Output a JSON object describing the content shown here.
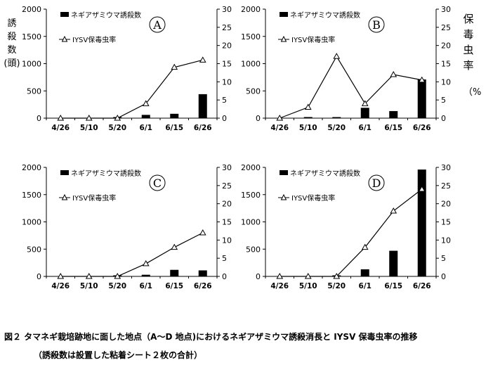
{
  "caption": {
    "line1": "図２ タマネギ栽培跡地に面した地点（A〜D 地点)におけるネギアザミウマ誘殺消長と IYSV 保毒虫率の推移",
    "line2": "（誘殺数は設置した粘着シート２枚の合計）"
  },
  "left_axis_label": {
    "chars": [
      "誘",
      "殺",
      "数",
      "(頭)"
    ]
  },
  "right_axis_label": {
    "chars": [
      "保",
      "毒",
      "虫",
      "率"
    ],
    "unit": "（%"
  },
  "colors": {
    "bar": "#000000",
    "line": "#000000",
    "axis": "#000000"
  },
  "chart_data": [
    {
      "type": "bar+line",
      "panel": "A",
      "categories": [
        "4/26",
        "5/10",
        "5/20",
        "6/1",
        "6/15",
        "6/26"
      ],
      "series": [
        {
          "name": "ネギアザミウマ誘殺数",
          "kind": "bar",
          "axis": "left",
          "values": [
            0,
            0,
            5,
            60,
            80,
            440
          ]
        },
        {
          "name": "IYSV保毒虫率",
          "kind": "line",
          "axis": "right",
          "values": [
            0,
            0,
            0,
            4,
            14,
            16
          ]
        }
      ],
      "ylim_left": [
        0,
        2000
      ],
      "yticks_left": [
        "0",
        "500",
        "1000",
        "1500",
        "2000"
      ],
      "ylim_right": [
        0,
        30
      ],
      "yticks_right": [
        "0",
        "5",
        "10",
        "15",
        "20",
        "25",
        "30"
      ],
      "legend_position": "top-left"
    },
    {
      "type": "bar+line",
      "panel": "B",
      "categories": [
        "4/26",
        "5/10",
        "5/20",
        "6/1",
        "6/15",
        "6/26"
      ],
      "series": [
        {
          "name": "ネギアザミウマ誘殺数",
          "kind": "bar",
          "axis": "left",
          "values": [
            0,
            20,
            15,
            190,
            130,
            710
          ]
        },
        {
          "name": "IYSV保毒虫率",
          "kind": "line",
          "axis": "right",
          "values": [
            0,
            3,
            17,
            4,
            12,
            10.5
          ]
        }
      ],
      "ylim_left": [
        0,
        2000
      ],
      "yticks_left": [
        "0",
        "500",
        "1000",
        "1500",
        "2000"
      ],
      "ylim_right": [
        0,
        30
      ],
      "yticks_right": [
        "0",
        "5",
        "10",
        "15",
        "20",
        "25",
        "30"
      ],
      "legend_position": "top-left"
    },
    {
      "type": "bar+line",
      "panel": "C",
      "categories": [
        "4/26",
        "5/10",
        "5/20",
        "6/1",
        "6/15",
        "6/26"
      ],
      "series": [
        {
          "name": "ネギアザミウマ誘殺数",
          "kind": "bar",
          "axis": "left",
          "values": [
            0,
            0,
            5,
            30,
            120,
            110
          ]
        },
        {
          "name": "IYSV保毒虫率",
          "kind": "line",
          "axis": "right",
          "values": [
            0,
            0,
            0,
            3.5,
            8,
            12
          ]
        }
      ],
      "ylim_left": [
        0,
        2000
      ],
      "yticks_left": [
        "0",
        "500",
        "1000",
        "1500",
        "2000"
      ],
      "ylim_right": [
        0,
        30
      ],
      "yticks_right": [
        "0",
        "5",
        "10",
        "15",
        "20",
        "25",
        "30"
      ],
      "legend_position": "top-left"
    },
    {
      "type": "bar+line",
      "panel": "D",
      "categories": [
        "4/26",
        "5/10",
        "5/20",
        "6/1",
        "6/15",
        "6/26"
      ],
      "series": [
        {
          "name": "ネギアザミウマ誘殺数",
          "kind": "bar",
          "axis": "left",
          "values": [
            0,
            0,
            10,
            130,
            470,
            1960
          ]
        },
        {
          "name": "IYSV保毒虫率",
          "kind": "line",
          "axis": "right",
          "values": [
            0,
            0,
            0,
            8,
            18,
            24
          ]
        }
      ],
      "ylim_left": [
        0,
        2000
      ],
      "yticks_left": [
        "0",
        "500",
        "1000",
        "1500",
        "2000"
      ],
      "ylim_right": [
        0,
        30
      ],
      "yticks_right": [
        "0",
        "5",
        "10",
        "15",
        "20",
        "25",
        "30"
      ],
      "legend_position": "top-left"
    }
  ]
}
